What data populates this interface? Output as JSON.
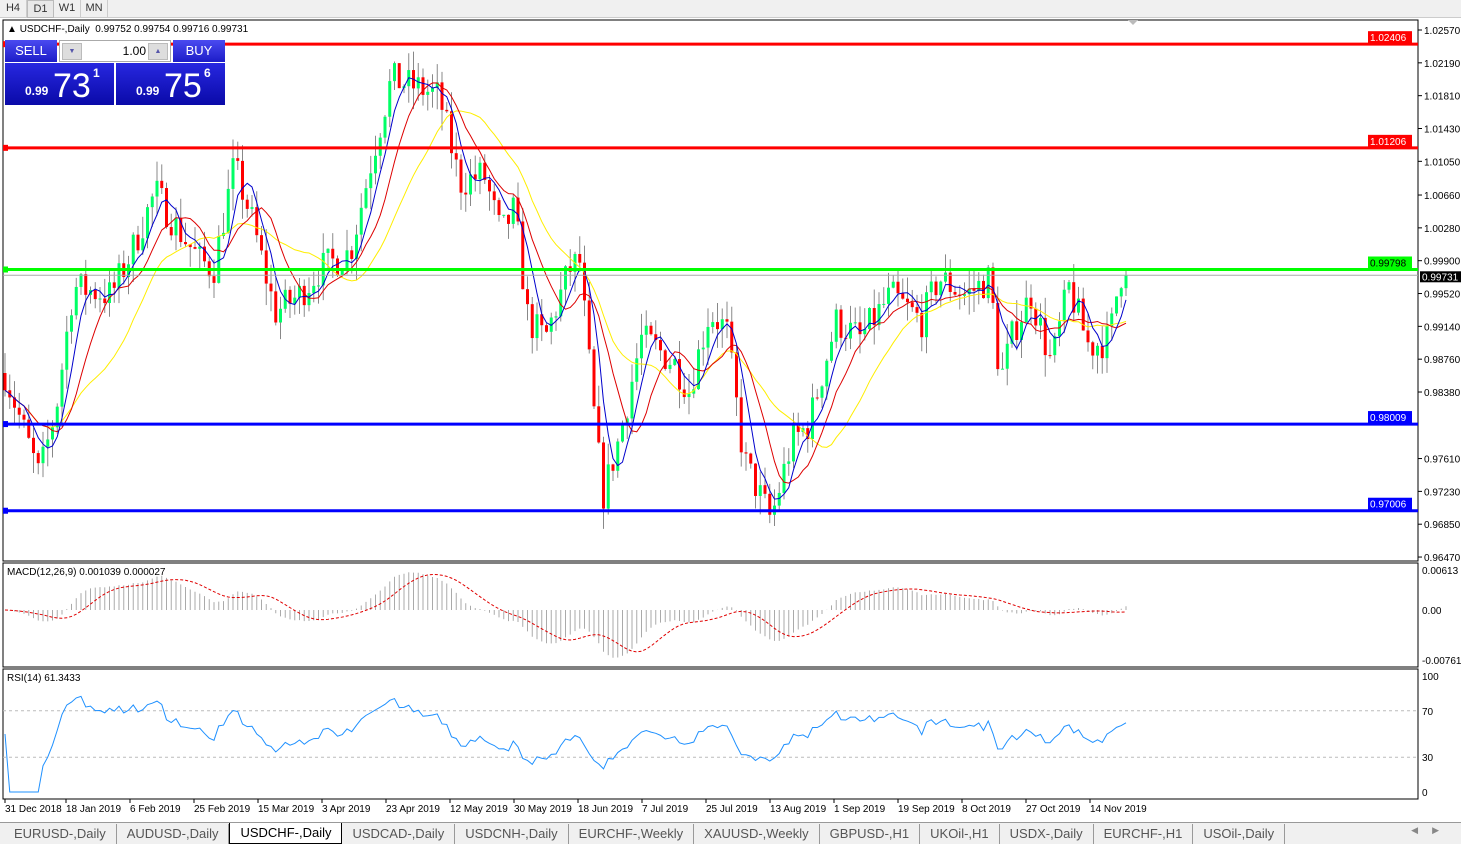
{
  "timeframes": [
    {
      "label": "H4"
    },
    {
      "label": "D1",
      "active": true
    },
    {
      "label": "W1"
    },
    {
      "label": "MN"
    }
  ],
  "chart": {
    "title": "USDCHF-,Daily",
    "ohlc": "0.99752 0.99754 0.99716 0.99731"
  },
  "trade_panel": {
    "sell_label": "SELL",
    "buy_label": "BUY",
    "lot": "1.00",
    "bid": {
      "prefix": "0.99",
      "big": "73",
      "sup": "1"
    },
    "ask": {
      "prefix": "0.99",
      "big": "75",
      "sup": "6"
    }
  },
  "price_axis": {
    "ticks": [
      "1.02570",
      "1.02190",
      "1.01810",
      "1.01430",
      "1.01050",
      "1.00660",
      "1.00280",
      "0.99900",
      "0.99520",
      "0.99140",
      "0.98760",
      "0.98380",
      "0.97610",
      "0.97230",
      "0.96850",
      "0.96470"
    ],
    "min": 0.9647,
    "max": 1.0257
  },
  "levels": [
    {
      "price": "1.02406",
      "color": "#ff0000"
    },
    {
      "price": "1.01206",
      "color": "#ff0000"
    },
    {
      "price": "0.99798",
      "color": "#00ff00"
    },
    {
      "price": "0.98009",
      "color": "#0000ff"
    },
    {
      "price": "0.97006",
      "color": "#0000ff"
    }
  ],
  "current_price": "0.99731",
  "macd": {
    "label": "MACD(12,26,9) 0.001039 0.000027",
    "ticks": [
      "0.00613",
      "0.00",
      "-0.007612"
    ]
  },
  "rsi": {
    "label": "RSI(14) 61.3433",
    "ticks": [
      "100",
      "70",
      "30",
      "0"
    ]
  },
  "date_axis": [
    "31 Dec 2018",
    "18 Jan 2019",
    "6 Feb 2019",
    "25 Feb 2019",
    "15 Mar 2019",
    "3 Apr 2019",
    "23 Apr 2019",
    "12 May 2019",
    "30 May 2019",
    "18 Jun 2019",
    "7 Jul 2019",
    "25 Jul 2019",
    "13 Aug 2019",
    "1 Sep 2019",
    "19 Sep 2019",
    "8 Oct 2019",
    "27 Oct 2019",
    "14 Nov 2019"
  ],
  "colors": {
    "bull": "#00ff66",
    "bear": "#ff0000",
    "ma_fast": "#0000cc",
    "ma_mid": "#dd0000",
    "ma_slow": "#ffee00"
  },
  "price_path": [
    [
      "2018-12-31",
      0.986
    ],
    [
      "2019-01-10",
      0.974
    ],
    [
      "2019-01-15",
      0.982
    ],
    [
      "2019-01-20",
      0.996
    ],
    [
      "2019-01-31",
      0.995
    ],
    [
      "2019-02-06",
      1.0
    ],
    [
      "2019-02-13",
      1.007
    ],
    [
      "2019-02-19",
      1.003
    ],
    [
      "2019-02-26",
      0.999
    ],
    [
      "2019-03-02",
      0.998
    ],
    [
      "2019-03-08",
      1.01
    ],
    [
      "2019-03-13",
      1.004
    ],
    [
      "2019-03-20",
      0.993
    ],
    [
      "2019-03-27",
      0.995
    ],
    [
      "2019-04-02",
      0.998
    ],
    [
      "2019-04-11",
      1.0
    ],
    [
      "2019-04-18",
      1.012
    ],
    [
      "2019-04-23",
      1.02
    ],
    [
      "2019-05-01",
      1.019
    ],
    [
      "2019-05-07",
      1.018
    ],
    [
      "2019-05-13",
      1.008
    ],
    [
      "2019-05-20",
      1.009
    ],
    [
      "2019-05-25",
      1.002
    ],
    [
      "2019-05-29",
      1.005
    ],
    [
      "2019-06-02",
      0.992
    ],
    [
      "2019-06-07",
      0.99
    ],
    [
      "2019-06-14",
      0.998
    ],
    [
      "2019-06-17",
      0.999
    ],
    [
      "2019-06-22",
      0.978
    ],
    [
      "2019-06-24",
      0.972
    ],
    [
      "2019-06-29",
      0.979
    ],
    [
      "2019-07-05",
      0.99
    ],
    [
      "2019-07-09",
      0.989
    ],
    [
      "2019-07-15",
      0.987
    ],
    [
      "2019-07-19",
      0.984
    ],
    [
      "2019-07-25",
      0.993
    ],
    [
      "2019-07-30",
      0.991
    ],
    [
      "2019-08-04",
      0.976
    ],
    [
      "2019-08-12",
      0.969
    ],
    [
      "2019-08-18",
      0.978
    ],
    [
      "2019-08-23",
      0.98
    ],
    [
      "2019-08-31",
      0.992
    ],
    [
      "2019-09-07",
      0.99
    ],
    [
      "2019-09-16",
      0.995
    ],
    [
      "2019-09-25",
      0.992
    ],
    [
      "2019-09-30",
      0.997
    ],
    [
      "2019-10-08",
      0.995
    ],
    [
      "2019-10-15",
      0.997
    ],
    [
      "2019-10-18",
      0.985
    ],
    [
      "2019-10-22",
      0.991
    ],
    [
      "2019-10-27",
      0.995
    ],
    [
      "2019-11-02",
      0.987
    ],
    [
      "2019-11-07",
      0.996
    ],
    [
      "2019-11-13",
      0.989
    ],
    [
      "2019-11-19",
      0.99
    ],
    [
      "2019-11-22",
      0.9975
    ],
    [
      "2019-11-24",
      0.99731
    ]
  ],
  "tabs": [
    {
      "label": "EURUSD-,Daily"
    },
    {
      "label": "AUDUSD-,Daily"
    },
    {
      "label": "USDCHF-,Daily",
      "active": true
    },
    {
      "label": "USDCAD-,Daily"
    },
    {
      "label": "USDCNH-,Daily"
    },
    {
      "label": "EURCHF-,Weekly"
    },
    {
      "label": "XAUUSD-,Weekly"
    },
    {
      "label": "GBPUSD-,H1"
    },
    {
      "label": "UKOil-,H1"
    },
    {
      "label": "USDX-,Daily"
    },
    {
      "label": "EURCHF-,H1"
    },
    {
      "label": "USOil-,Daily"
    }
  ]
}
